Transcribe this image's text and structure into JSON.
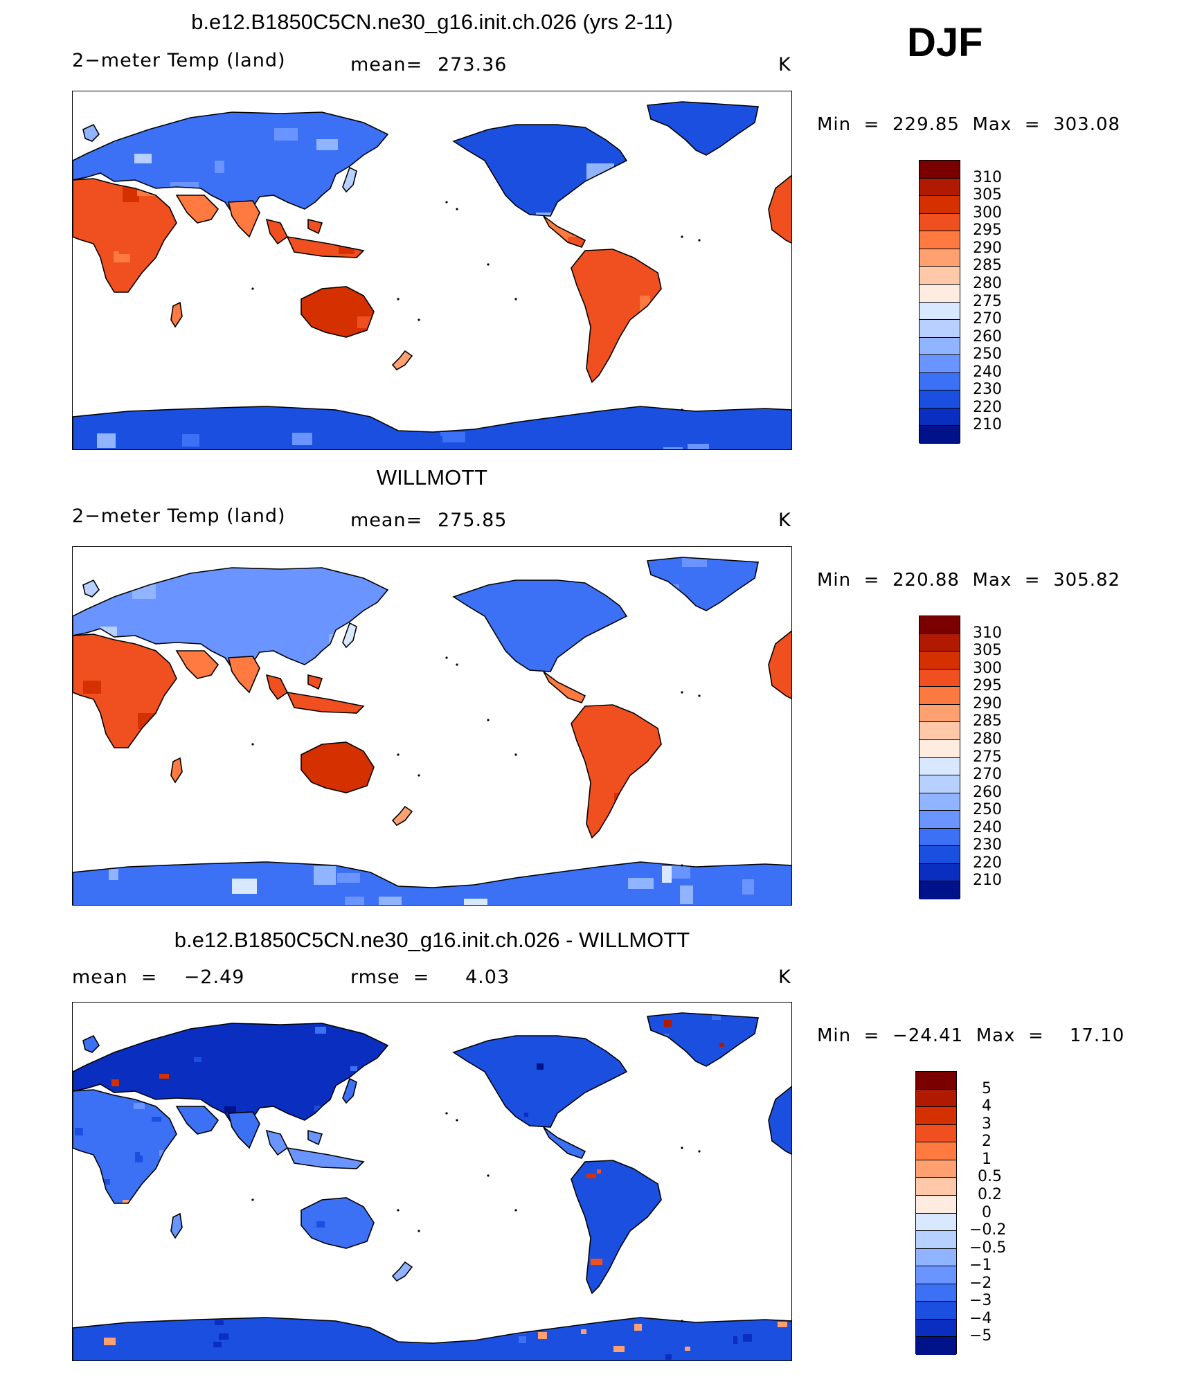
{
  "figure": {
    "season": "DJF",
    "unit_label": "K"
  },
  "panels": [
    {
      "id": "model",
      "title": "b.e12.B1850C5CN.ne30_g16.init.ch.026 (yrs 2-11)",
      "left_label": "2−meter Temp (land)",
      "stat_label": "mean=",
      "stat_value": "273.36",
      "unit": "K",
      "min_text": "Min  =  229.85  Max  =  303.08",
      "min": 229.85,
      "max": 303.08,
      "colorbar": {
        "labels": [
          "310",
          "305",
          "300",
          "295",
          "290",
          "285",
          "280",
          "275",
          "270",
          "260",
          "250",
          "240",
          "230",
          "220",
          "210"
        ],
        "colors": [
          "#7a0000",
          "#b01a00",
          "#d43000",
          "#f0501f",
          "#ff7a40",
          "#ffa070",
          "#ffc8a8",
          "#ffece0",
          "#d8e8ff",
          "#b8d0ff",
          "#90b4ff",
          "#6a94ff",
          "#3c70f5",
          "#1a4fe0",
          "#0a2fc0",
          "#00128a"
        ]
      },
      "map_kind": "absolute_model"
    },
    {
      "id": "obs",
      "title": "WILLMOTT",
      "left_label": "2−meter Temp (land)",
      "stat_label": "mean=",
      "stat_value": "275.85",
      "unit": "K",
      "min_text": "Min  =  220.88  Max  =  305.82",
      "min": 220.88,
      "max": 305.82,
      "colorbar": {
        "labels": [
          "310",
          "305",
          "300",
          "295",
          "290",
          "285",
          "280",
          "275",
          "270",
          "260",
          "250",
          "240",
          "230",
          "220",
          "210"
        ],
        "colors": [
          "#7a0000",
          "#b01a00",
          "#d43000",
          "#f0501f",
          "#ff7a40",
          "#ffa070",
          "#ffc8a8",
          "#ffece0",
          "#d8e8ff",
          "#b8d0ff",
          "#90b4ff",
          "#6a94ff",
          "#3c70f5",
          "#1a4fe0",
          "#0a2fc0",
          "#00128a"
        ]
      },
      "map_kind": "absolute_obs"
    },
    {
      "id": "diff",
      "title": "b.e12.B1850C5CN.ne30_g16.init.ch.026 - WILLMOTT",
      "left_label": "mean  =    −2.49",
      "stat_label": "rmse  =",
      "stat_value": "4.03",
      "unit": "K",
      "min_text": "Min  =  −24.41  Max  =    17.10",
      "min": -24.41,
      "max": 17.1,
      "mean": -2.49,
      "rmse": 4.03,
      "colorbar": {
        "labels": [
          "5",
          "4",
          "3",
          "2",
          "1",
          "0.5",
          "0.2",
          "0",
          "−0.2",
          "−0.5",
          "−1",
          "−2",
          "−3",
          "−4",
          "−5"
        ],
        "colors": [
          "#7a0000",
          "#b01a00",
          "#d43000",
          "#f0501f",
          "#ff7a40",
          "#ffa070",
          "#ffc8a8",
          "#ffece0",
          "#d8e8ff",
          "#b8d0ff",
          "#90b4ff",
          "#6a94ff",
          "#3c70f5",
          "#1a4fe0",
          "#0a2fc0",
          "#00128a"
        ]
      },
      "map_kind": "difference"
    }
  ]
}
